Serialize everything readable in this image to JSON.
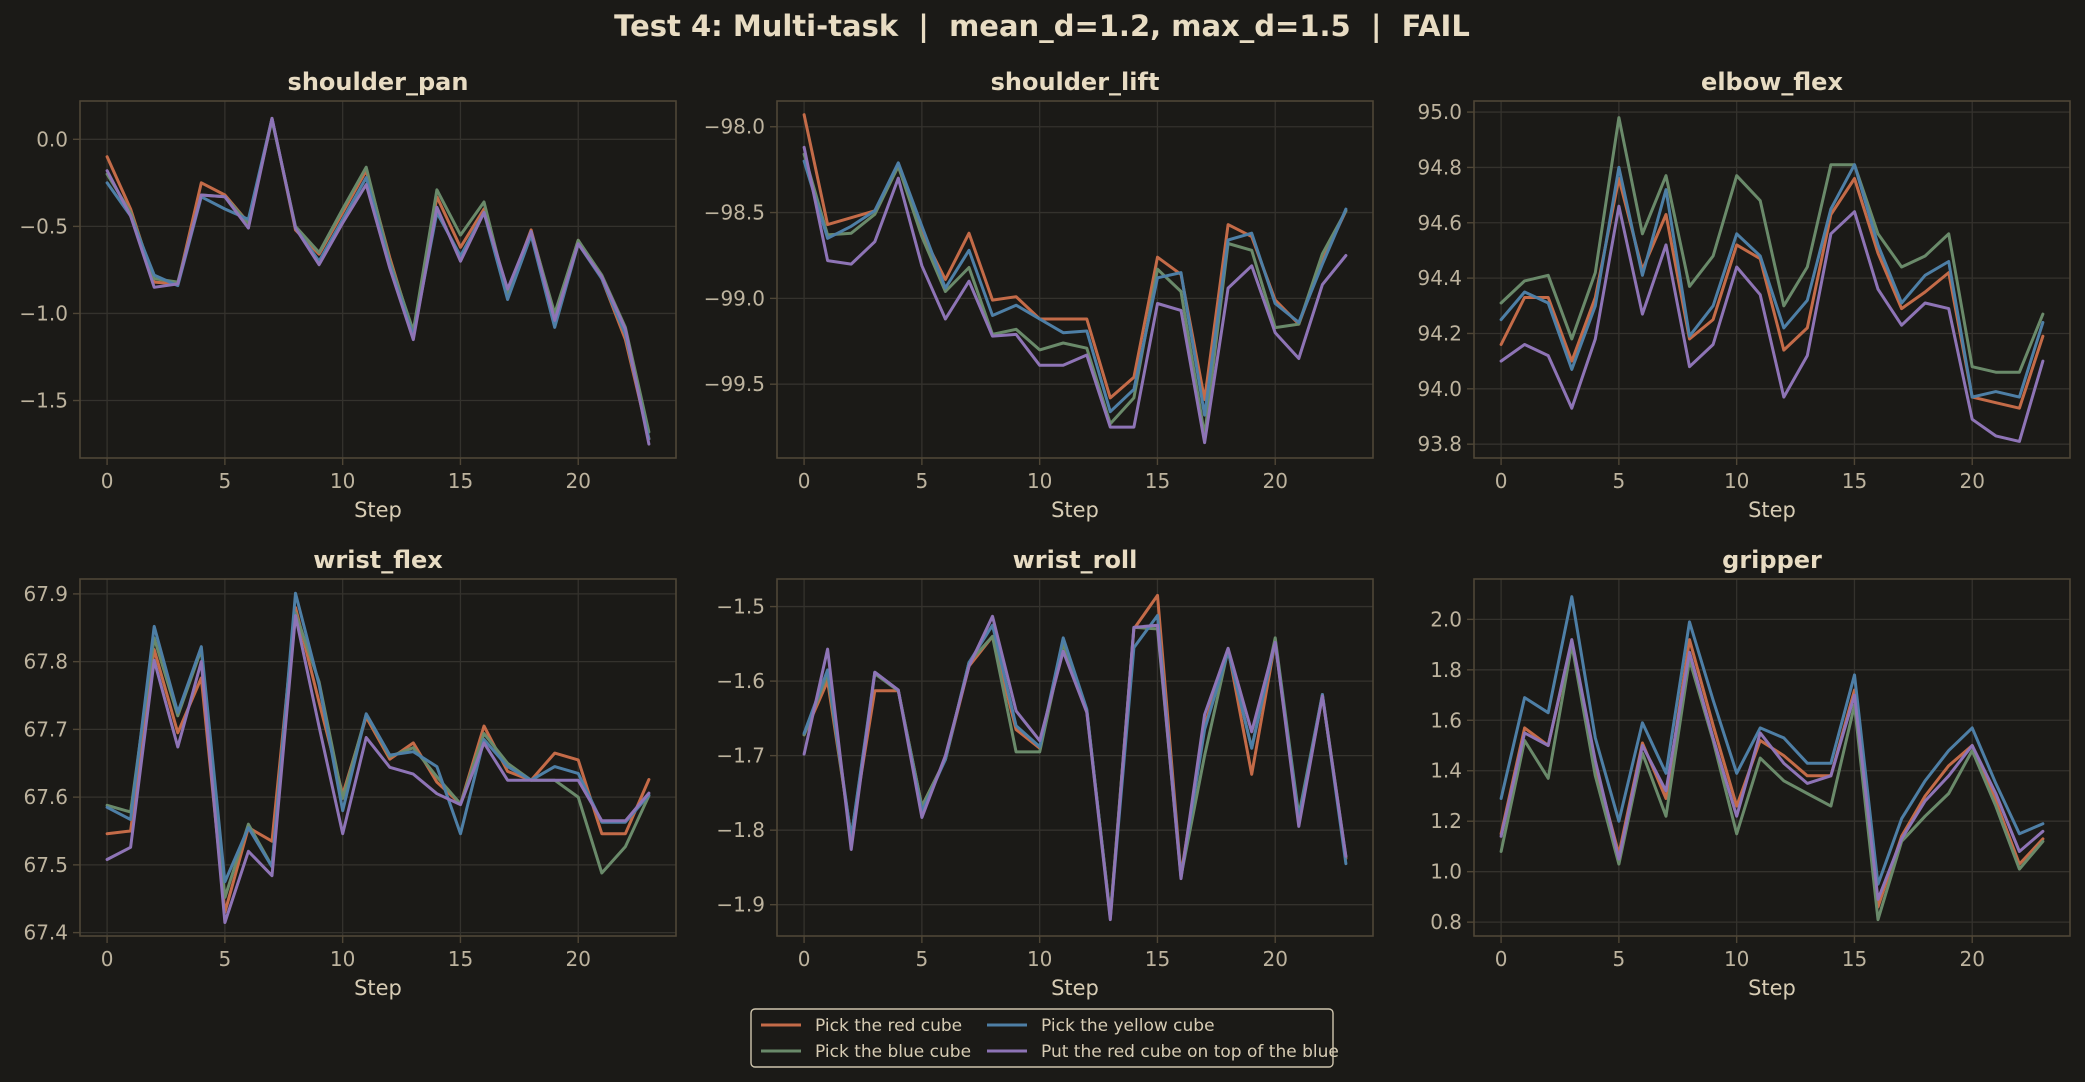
{
  "figure": {
    "suptitle": "Test 4: Multi-task  |  mean_d=1.2, max_d=1.5  |  FAIL",
    "background": "#1b1a17",
    "panel_border": "#4f4636",
    "grid_color": "#34322d",
    "text_color": "#e8dcc3"
  },
  "legend": {
    "placement": "bottom-center",
    "entries": [
      {
        "label": "Pick the red cube",
        "color": "#c46b48"
      },
      {
        "label": "Pick the blue cube",
        "color": "#6a8a6a"
      },
      {
        "label": "Pick the yellow cube",
        "color": "#4e7fa6"
      },
      {
        "label": "Put the red cube on top of the blue",
        "color": "#8e74b6"
      }
    ]
  },
  "chart_data": [
    {
      "type": "line",
      "title": "shoulder_pan",
      "xlabel": "Step",
      "ylabel": "",
      "xlim": [
        -1.15,
        24.15
      ],
      "ylim": [
        -1.83,
        0.22
      ],
      "xticks": [
        0,
        5,
        10,
        15,
        20
      ],
      "yticks": [
        0.0,
        -0.5,
        -1.0,
        -1.5
      ],
      "ytick_labels": [
        "0.0",
        "−0.5",
        "−1.0",
        "−1.5"
      ],
      "grid": true,
      "series": [
        {
          "name": "Pick the red cube",
          "color": "#c46b48",
          "values": [
            -0.1,
            -0.4,
            -0.82,
            -0.83,
            -0.25,
            -0.32,
            -0.48,
            0.12,
            -0.52,
            -0.66,
            -0.42,
            -0.18,
            -0.68,
            -1.12,
            -0.33,
            -0.62,
            -0.4,
            -0.88,
            -0.52,
            -1.02,
            -0.58,
            -0.8,
            -1.15,
            -1.72
          ]
        },
        {
          "name": "Pick the blue cube",
          "color": "#6a8a6a",
          "values": [
            -0.2,
            -0.42,
            -0.8,
            -0.82,
            -0.32,
            -0.33,
            -0.48,
            0.11,
            -0.5,
            -0.65,
            -0.4,
            -0.16,
            -0.7,
            -1.1,
            -0.29,
            -0.55,
            -0.36,
            -0.9,
            -0.53,
            -1.0,
            -0.58,
            -0.78,
            -1.08,
            -1.68
          ]
        },
        {
          "name": "Pick the yellow cube",
          "color": "#4e7fa6",
          "values": [
            -0.25,
            -0.44,
            -0.78,
            -0.84,
            -0.33,
            -0.4,
            -0.46,
            0.12,
            -0.51,
            -0.7,
            -0.46,
            -0.22,
            -0.72,
            -1.13,
            -0.42,
            -0.67,
            -0.42,
            -0.92,
            -0.55,
            -1.08,
            -0.6,
            -0.8,
            -1.12,
            -1.72
          ]
        },
        {
          "name": "Put the red cube on top of the blue",
          "color": "#8e74b6",
          "values": [
            -0.18,
            -0.44,
            -0.85,
            -0.83,
            -0.32,
            -0.33,
            -0.51,
            0.12,
            -0.51,
            -0.72,
            -0.48,
            -0.26,
            -0.74,
            -1.15,
            -0.39,
            -0.7,
            -0.42,
            -0.86,
            -0.53,
            -1.04,
            -0.6,
            -0.79,
            -1.09,
            -1.75
          ]
        }
      ]
    },
    {
      "type": "line",
      "title": "shoulder_lift",
      "xlabel": "Step",
      "ylabel": "",
      "xlim": [
        -1.15,
        24.15
      ],
      "ylim": [
        -99.93,
        -97.85
      ],
      "xticks": [
        0,
        5,
        10,
        15,
        20
      ],
      "yticks": [
        -98.0,
        -98.5,
        -99.0,
        -99.5
      ],
      "ytick_labels": [
        "−98.0",
        "−98.5",
        "−99.0",
        "−99.5"
      ],
      "grid": true,
      "series": [
        {
          "name": "Pick the red cube",
          "color": "#c46b48",
          "values": [
            -97.93,
            -98.57,
            -98.53,
            -98.49,
            -98.23,
            -98.62,
            -98.89,
            -98.62,
            -99.01,
            -98.99,
            -99.12,
            -99.12,
            -99.12,
            -99.58,
            -99.46,
            -98.76,
            -98.86,
            -99.59,
            -98.57,
            -98.64,
            -99.01,
            -99.15,
            -98.78,
            -98.49
          ]
        },
        {
          "name": "Pick the blue cube",
          "color": "#6a8a6a",
          "values": [
            -98.16,
            -98.63,
            -98.62,
            -98.51,
            -98.23,
            -98.64,
            -98.96,
            -98.82,
            -99.21,
            -99.18,
            -99.3,
            -99.26,
            -99.29,
            -99.73,
            -99.58,
            -98.83,
            -98.96,
            -99.8,
            -98.68,
            -98.72,
            -99.17,
            -99.15,
            -98.74,
            -98.49
          ]
        },
        {
          "name": "Pick the yellow cube",
          "color": "#4e7fa6",
          "values": [
            -98.2,
            -98.65,
            -98.58,
            -98.49,
            -98.21,
            -98.58,
            -98.94,
            -98.72,
            -99.1,
            -99.04,
            -99.12,
            -99.2,
            -99.19,
            -99.66,
            -99.53,
            -98.88,
            -98.85,
            -99.68,
            -98.66,
            -98.62,
            -99.03,
            -99.14,
            -98.8,
            -98.48
          ]
        },
        {
          "name": "Put the red cube on top of the blue",
          "color": "#8e74b6",
          "values": [
            -98.12,
            -98.78,
            -98.8,
            -98.67,
            -98.3,
            -98.81,
            -99.12,
            -98.9,
            -99.22,
            -99.21,
            -99.39,
            -99.39,
            -99.33,
            -99.75,
            -99.75,
            -99.03,
            -99.07,
            -99.84,
            -98.94,
            -98.81,
            -99.2,
            -99.35,
            -98.92,
            -98.75
          ]
        }
      ]
    },
    {
      "type": "line",
      "title": "elbow_flex",
      "xlabel": "Step",
      "ylabel": "",
      "xlim": [
        -1.15,
        24.15
      ],
      "ylim": [
        93.75,
        95.04
      ],
      "xticks": [
        0,
        5,
        10,
        15,
        20
      ],
      "yticks": [
        93.8,
        94.0,
        94.2,
        94.4,
        94.6,
        94.8,
        95.0
      ],
      "ytick_labels": [
        "93.8",
        "94.0",
        "94.2",
        "94.4",
        "94.6",
        "94.8",
        "95.0"
      ],
      "grid": true,
      "series": [
        {
          "name": "Pick the red cube",
          "color": "#c46b48",
          "values": [
            94.16,
            94.33,
            94.33,
            94.1,
            94.33,
            94.76,
            94.43,
            94.63,
            94.18,
            94.25,
            94.52,
            94.47,
            94.14,
            94.22,
            94.63,
            94.76,
            94.49,
            94.29,
            94.35,
            94.42,
            93.97,
            93.95,
            93.93,
            94.19
          ]
        },
        {
          "name": "Pick the blue cube",
          "color": "#6a8a6a",
          "values": [
            94.31,
            94.39,
            94.41,
            94.18,
            94.42,
            94.98,
            94.56,
            94.77,
            94.37,
            94.48,
            94.77,
            94.68,
            94.3,
            94.44,
            94.81,
            94.81,
            94.56,
            94.44,
            94.48,
            94.56,
            94.08,
            94.06,
            94.06,
            94.27
          ]
        },
        {
          "name": "Pick the yellow cube",
          "color": "#4e7fa6",
          "values": [
            94.25,
            94.35,
            94.31,
            94.07,
            94.3,
            94.8,
            94.41,
            94.72,
            94.19,
            94.3,
            94.56,
            94.48,
            94.22,
            94.32,
            94.65,
            94.81,
            94.52,
            94.31,
            94.41,
            94.46,
            93.97,
            93.99,
            93.97,
            94.24
          ]
        },
        {
          "name": "Put the red cube on top of the blue",
          "color": "#8e74b6",
          "values": [
            94.1,
            94.16,
            94.12,
            93.93,
            94.18,
            94.66,
            94.27,
            94.52,
            94.08,
            94.16,
            94.44,
            94.34,
            93.97,
            94.12,
            94.56,
            94.64,
            94.36,
            94.23,
            94.31,
            94.29,
            93.89,
            93.83,
            93.81,
            94.1
          ]
        }
      ]
    },
    {
      "type": "line",
      "title": "wrist_flex",
      "xlabel": "Step",
      "ylabel": "",
      "xlim": [
        -1.15,
        24.15
      ],
      "ylim": [
        67.395,
        67.922
      ],
      "xticks": [
        0,
        5,
        10,
        15,
        20
      ],
      "yticks": [
        67.4,
        67.5,
        67.6,
        67.7,
        67.8,
        67.9
      ],
      "ytick_labels": [
        "67.4",
        "67.5",
        "67.6",
        "67.7",
        "67.8",
        "67.9"
      ],
      "grid": true,
      "series": [
        {
          "name": "Pick the red cube",
          "color": "#c46b48",
          "values": [
            67.546,
            67.55,
            67.818,
            67.695,
            67.776,
            67.43,
            67.555,
            67.535,
            67.88,
            67.74,
            67.604,
            67.718,
            67.656,
            67.68,
            67.622,
            67.59,
            67.705,
            67.638,
            67.625,
            67.665,
            67.655,
            67.546,
            67.546,
            67.626
          ]
        },
        {
          "name": "Pick the blue cube",
          "color": "#6a8a6a",
          "values": [
            67.588,
            67.578,
            67.835,
            67.72,
            67.818,
            67.452,
            67.56,
            67.498,
            67.872,
            67.77,
            67.598,
            67.722,
            67.66,
            67.673,
            67.63,
            67.59,
            67.694,
            67.65,
            67.625,
            67.625,
            67.6,
            67.488,
            67.527,
            67.602
          ]
        },
        {
          "name": "Pick the yellow cube",
          "color": "#4e7fa6",
          "values": [
            67.585,
            67.567,
            67.852,
            67.725,
            67.822,
            67.475,
            67.555,
            67.497,
            67.901,
            67.766,
            67.58,
            67.723,
            67.662,
            67.667,
            67.645,
            67.546,
            67.685,
            67.645,
            67.625,
            67.645,
            67.635,
            67.563,
            67.563,
            67.603
          ]
        },
        {
          "name": "Put the red cube on top of the blue",
          "color": "#8e74b6",
          "values": [
            67.508,
            67.526,
            67.802,
            67.674,
            67.8,
            67.415,
            67.52,
            67.484,
            67.868,
            67.704,
            67.546,
            67.688,
            67.644,
            67.634,
            67.605,
            67.589,
            67.68,
            67.625,
            67.625,
            67.625,
            67.625,
            67.565,
            67.565,
            67.606
          ]
        }
      ]
    },
    {
      "type": "line",
      "title": "wrist_roll",
      "xlabel": "Step",
      "ylabel": "",
      "xlim": [
        -1.15,
        24.15
      ],
      "ylim": [
        -1.942,
        -1.463
      ],
      "xticks": [
        0,
        5,
        10,
        15,
        20
      ],
      "yticks": [
        -1.5,
        -1.6,
        -1.7,
        -1.8,
        -1.9
      ],
      "ytick_labels": [
        "−1.5",
        "−1.6",
        "−1.7",
        "−1.8",
        "−1.9"
      ],
      "grid": true,
      "series": [
        {
          "name": "Pick the red cube",
          "color": "#c46b48",
          "values": [
            -1.672,
            -1.6,
            -1.808,
            -1.613,
            -1.613,
            -1.768,
            -1.705,
            -1.58,
            -1.54,
            -1.665,
            -1.69,
            -1.548,
            -1.64,
            -1.915,
            -1.53,
            -1.485,
            -1.86,
            -1.66,
            -1.557,
            -1.725,
            -1.547,
            -1.79,
            -1.62,
            -1.838
          ]
        },
        {
          "name": "Pick the blue cube",
          "color": "#6a8a6a",
          "values": [
            -1.672,
            -1.59,
            -1.812,
            -1.59,
            -1.613,
            -1.768,
            -1.705,
            -1.575,
            -1.54,
            -1.695,
            -1.695,
            -1.55,
            -1.64,
            -1.915,
            -1.528,
            -1.53,
            -1.862,
            -1.7,
            -1.558,
            -1.69,
            -1.542,
            -1.78,
            -1.618,
            -1.836
          ]
        },
        {
          "name": "Pick the yellow cube",
          "color": "#4e7fa6",
          "values": [
            -1.67,
            -1.585,
            -1.81,
            -1.588,
            -1.612,
            -1.775,
            -1.705,
            -1.575,
            -1.525,
            -1.66,
            -1.688,
            -1.542,
            -1.638,
            -1.918,
            -1.555,
            -1.512,
            -1.863,
            -1.665,
            -1.56,
            -1.69,
            -1.548,
            -1.785,
            -1.618,
            -1.845
          ]
        },
        {
          "name": "Put the red cube on top of the blue",
          "color": "#8e74b6",
          "values": [
            -1.698,
            -1.557,
            -1.826,
            -1.588,
            -1.612,
            -1.783,
            -1.7,
            -1.58,
            -1.513,
            -1.64,
            -1.68,
            -1.56,
            -1.642,
            -1.92,
            -1.528,
            -1.525,
            -1.865,
            -1.645,
            -1.556,
            -1.668,
            -1.548,
            -1.795,
            -1.62,
            -1.835
          ]
        }
      ]
    },
    {
      "type": "line",
      "title": "gripper",
      "xlabel": "Step",
      "ylabel": "",
      "xlim": [
        -1.15,
        24.15
      ],
      "ylim": [
        0.745,
        2.16
      ],
      "xticks": [
        0,
        5,
        10,
        15,
        20
      ],
      "yticks": [
        0.8,
        1.0,
        1.2,
        1.4,
        1.6,
        1.8,
        2.0
      ],
      "ytick_labels": [
        "0.8",
        "1.0",
        "1.2",
        "1.4",
        "1.6",
        "1.8",
        "2.0"
      ],
      "grid": true,
      "series": [
        {
          "name": "Pick the red cube",
          "color": "#c46b48",
          "values": [
            1.15,
            1.57,
            1.5,
            1.91,
            1.42,
            1.07,
            1.51,
            1.29,
            1.92,
            1.58,
            1.26,
            1.52,
            1.46,
            1.38,
            1.38,
            1.72,
            0.86,
            1.14,
            1.3,
            1.42,
            1.5,
            1.28,
            1.03,
            1.13
          ]
        },
        {
          "name": "Pick the blue cube",
          "color": "#6a8a6a",
          "values": [
            1.08,
            1.52,
            1.37,
            1.9,
            1.38,
            1.03,
            1.47,
            1.22,
            1.84,
            1.52,
            1.15,
            1.45,
            1.36,
            1.31,
            1.26,
            1.66,
            0.81,
            1.12,
            1.22,
            1.31,
            1.48,
            1.26,
            1.01,
            1.12
          ]
        },
        {
          "name": "Pick the yellow cube",
          "color": "#4e7fa6",
          "values": [
            1.29,
            1.69,
            1.63,
            2.09,
            1.53,
            1.2,
            1.59,
            1.39,
            1.99,
            1.68,
            1.39,
            1.57,
            1.53,
            1.43,
            1.43,
            1.78,
            0.95,
            1.21,
            1.36,
            1.48,
            1.57,
            1.35,
            1.15,
            1.19
          ]
        },
        {
          "name": "Put the red cube on top of the blue",
          "color": "#8e74b6",
          "values": [
            1.14,
            1.55,
            1.5,
            1.92,
            1.44,
            1.05,
            1.5,
            1.32,
            1.87,
            1.53,
            1.22,
            1.55,
            1.43,
            1.35,
            1.38,
            1.7,
            0.89,
            1.13,
            1.28,
            1.38,
            1.5,
            1.31,
            1.08,
            1.16
          ]
        }
      ]
    }
  ]
}
